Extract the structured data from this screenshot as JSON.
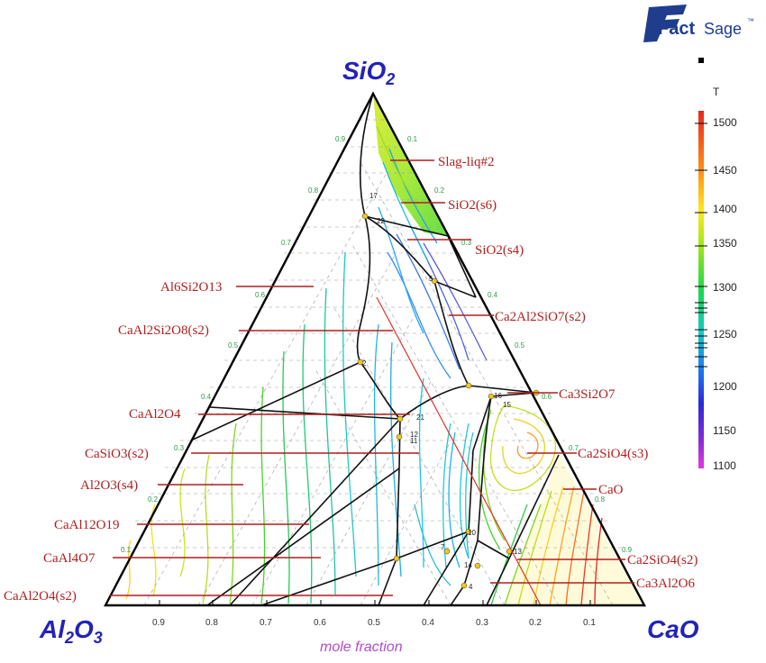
{
  "logo": {
    "text_fact": "Fact",
    "text_sage": "Sage",
    "mark": "™"
  },
  "vertices": {
    "top": "SiO",
    "top_sub": "2",
    "left": "Al",
    "left_sub1": "2",
    "left_mid": "O",
    "left_sub2": "3",
    "right": "CaO"
  },
  "bottom_axis": {
    "label": "mole fraction",
    "ticks": [
      "0.9",
      "0.8",
      "0.7",
      "0.6",
      "0.5",
      "0.4",
      "0.3",
      "0.2",
      "0.1"
    ]
  },
  "side_ticks_left": [
    "0.9",
    "0.8",
    "0.7",
    "0.6",
    "0.5",
    "0.4",
    "0.3",
    "0.2",
    "0.1"
  ],
  "side_ticks_right": [
    "0.1",
    "0.2",
    "0.3",
    "0.4",
    "0.5",
    "0.6",
    "0.7",
    "0.8",
    "0.9"
  ],
  "phase_labels_left": [
    "Al6Si2O13",
    "CaAl2Si2O8(s2)",
    "CaAl2O4",
    "CaSiO3(s2)",
    "Al2O3(s4)",
    "CaAl12O19",
    "CaAl4O7",
    "CaAl2O4(s2)"
  ],
  "phase_labels_right": [
    "Slag-liq#2",
    "SiO2(s6)",
    "SiO2(s4)",
    "Ca2Al2SiO7(s2)",
    "Ca3Si2O7",
    "Ca2SiO4(s3)",
    "CaO",
    "Ca2SiO4(s2)",
    "Ca3Al2O6"
  ],
  "temperature_scale": {
    "title": "T",
    "ticks": [
      "1500",
      "1450",
      "1400",
      "1350",
      "1300",
      "1250",
      "1200",
      "1150",
      "1100"
    ]
  },
  "invariant_points": [
    "1",
    "2",
    "3",
    "4",
    "5",
    "6",
    "7",
    "8",
    "9",
    "10",
    "11",
    "12",
    "13",
    "14",
    "15",
    "16",
    "17",
    "18",
    "19",
    "20",
    "21",
    "22"
  ],
  "colors": {
    "vertex_label": "#2323b8",
    "phase_label": "#b01f1f",
    "leader_line": "#b01f1f",
    "axis_label": "#b04cc8",
    "triangle": "#000000"
  }
}
